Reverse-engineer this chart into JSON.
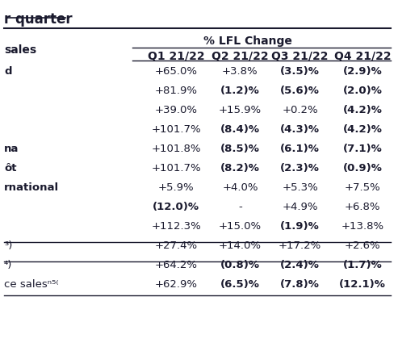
{
  "title": "r quarter",
  "title_underline": true,
  "header_lfl": "% LFL Change",
  "col_headers": [
    "Q1 21/22",
    "Q2 21/22",
    "Q3 21/22",
    "Q4 21/22"
  ],
  "row_label_col": "sales",
  "rows": [
    {
      "label": "d",
      "bold_label": true,
      "values": [
        "+65.0%",
        "+3.8%",
        "(3.5)%",
        "(2.9)%"
      ],
      "bold_values": [
        false,
        false,
        true,
        true
      ]
    },
    {
      "label": "",
      "bold_label": false,
      "values": [
        "+81.9%",
        "(1.2)%",
        "(5.6)%",
        "(2.0)%"
      ],
      "bold_values": [
        false,
        true,
        true,
        true
      ]
    },
    {
      "label": "",
      "bold_label": false,
      "values": [
        "+39.0%",
        "+15.9%",
        "+0.2%",
        "(4.2)%"
      ],
      "bold_values": [
        false,
        false,
        false,
        true
      ]
    },
    {
      "label": "",
      "bold_label": false,
      "values": [
        "+101.7%",
        "(8.4)%",
        "(4.3)%",
        "(4.2)%"
      ],
      "bold_values": [
        false,
        true,
        true,
        true
      ]
    },
    {
      "label": "na",
      "bold_label": true,
      "values": [
        "+101.8%",
        "(8.5)%",
        "(6.1)%",
        "(7.1)%"
      ],
      "bold_values": [
        false,
        true,
        true,
        true
      ]
    },
    {
      "label": "ôt",
      "bold_label": true,
      "values": [
        "+101.7%",
        "(8.2)%",
        "(2.3)%",
        "(0.9)%"
      ],
      "bold_values": [
        false,
        true,
        true,
        true
      ]
    },
    {
      "label": "rnational",
      "bold_label": true,
      "values": [
        "+5.9%",
        "+4.0%",
        "+5.3%",
        "+7.5%"
      ],
      "bold_values": [
        false,
        false,
        false,
        false
      ]
    },
    {
      "label": "",
      "bold_label": false,
      "values": [
        "(12.0)%",
        "-",
        "+4.9%",
        "+6.8%"
      ],
      "bold_values": [
        true,
        false,
        false,
        false
      ]
    },
    {
      "label": "",
      "bold_label": false,
      "values": [
        "+112.3%",
        "+15.0%",
        "(1.9)%",
        "+13.8%"
      ],
      "bold_values": [
        false,
        false,
        true,
        false
      ]
    },
    {
      "label": "³)",
      "bold_label": false,
      "values": [
        "+27.4%",
        "+14.0%",
        "+17.2%",
        "+2.6%"
      ],
      "bold_values": [
        false,
        false,
        false,
        false
      ]
    },
    {
      "label": "⁴)",
      "bold_label": false,
      "values": [
        "+64.2%",
        "(0.8)%",
        "(2.4)%",
        "(1.7)%"
      ],
      "bold_values": [
        false,
        true,
        true,
        true
      ],
      "top_border": true
    },
    {
      "label": "ce salesⁿ⁵⁽",
      "bold_label": false,
      "values": [
        "+62.9%",
        "(6.5)%",
        "(7.8)%",
        "(12.1)%"
      ],
      "bold_values": [
        false,
        true,
        true,
        true
      ],
      "top_border": true
    }
  ],
  "font_family": "Arial",
  "bg_color": "#ffffff",
  "text_color": "#1a1a2e",
  "header_color": "#1a1a2e",
  "fontsize_data": 9.5,
  "fontsize_header": 10,
  "fontsize_title": 12
}
